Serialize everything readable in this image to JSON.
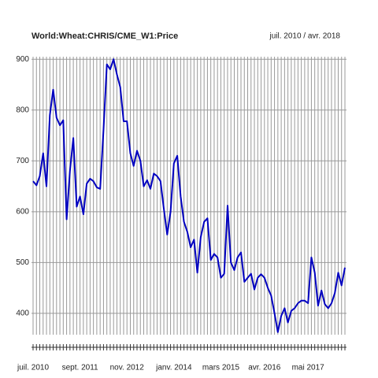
{
  "chart_data": {
    "type": "line",
    "title": "World:Wheat:CHRIS/CME_W1:Price",
    "subtitle": "juil. 2010 / avr. 2018",
    "categories": [
      "juil. 2010",
      null,
      null,
      null,
      null,
      null,
      null,
      null,
      null,
      null,
      null,
      null,
      null,
      null,
      "sept. 2011",
      null,
      null,
      null,
      null,
      null,
      null,
      null,
      null,
      null,
      null,
      null,
      null,
      null,
      "nov. 2012",
      null,
      null,
      null,
      null,
      null,
      null,
      null,
      null,
      null,
      null,
      null,
      null,
      null,
      "janv. 2014",
      null,
      null,
      null,
      null,
      null,
      null,
      null,
      null,
      null,
      null,
      null,
      null,
      null,
      "mars 2015",
      null,
      null,
      null,
      null,
      null,
      null,
      null,
      null,
      null,
      null,
      null,
      null,
      "avr. 2016",
      null,
      null,
      null,
      null,
      null,
      null,
      null,
      null,
      null,
      null,
      null,
      null,
      "mai 2017",
      null,
      null,
      null,
      null,
      null,
      null,
      null,
      null,
      null,
      null,
      null
    ],
    "series": [
      {
        "name": "Price",
        "color": "#0000c0",
        "values": [
          660,
          652,
          670,
          715,
          650,
          790,
          840,
          785,
          770,
          780,
          585,
          680,
          745,
          610,
          630,
          595,
          655,
          665,
          660,
          648,
          645,
          760,
          890,
          880,
          900,
          870,
          845,
          778,
          778,
          715,
          690,
          720,
          700,
          650,
          662,
          645,
          675,
          670,
          660,
          605,
          555,
          600,
          695,
          710,
          630,
          580,
          560,
          530,
          545,
          480,
          550,
          580,
          587,
          505,
          517,
          510,
          470,
          478,
          612,
          500,
          485,
          510,
          520,
          462,
          470,
          478,
          447,
          470,
          477,
          470,
          450,
          435,
          400,
          363,
          395,
          410,
          382,
          405,
          410,
          420,
          425,
          425,
          420,
          510,
          480,
          415,
          445,
          418,
          410,
          420,
          440,
          480,
          455,
          490
        ]
      }
    ],
    "ylim": [
      358,
      905
    ],
    "yticks": [
      400,
      500,
      600,
      700,
      800,
      900
    ],
    "grid": true
  }
}
